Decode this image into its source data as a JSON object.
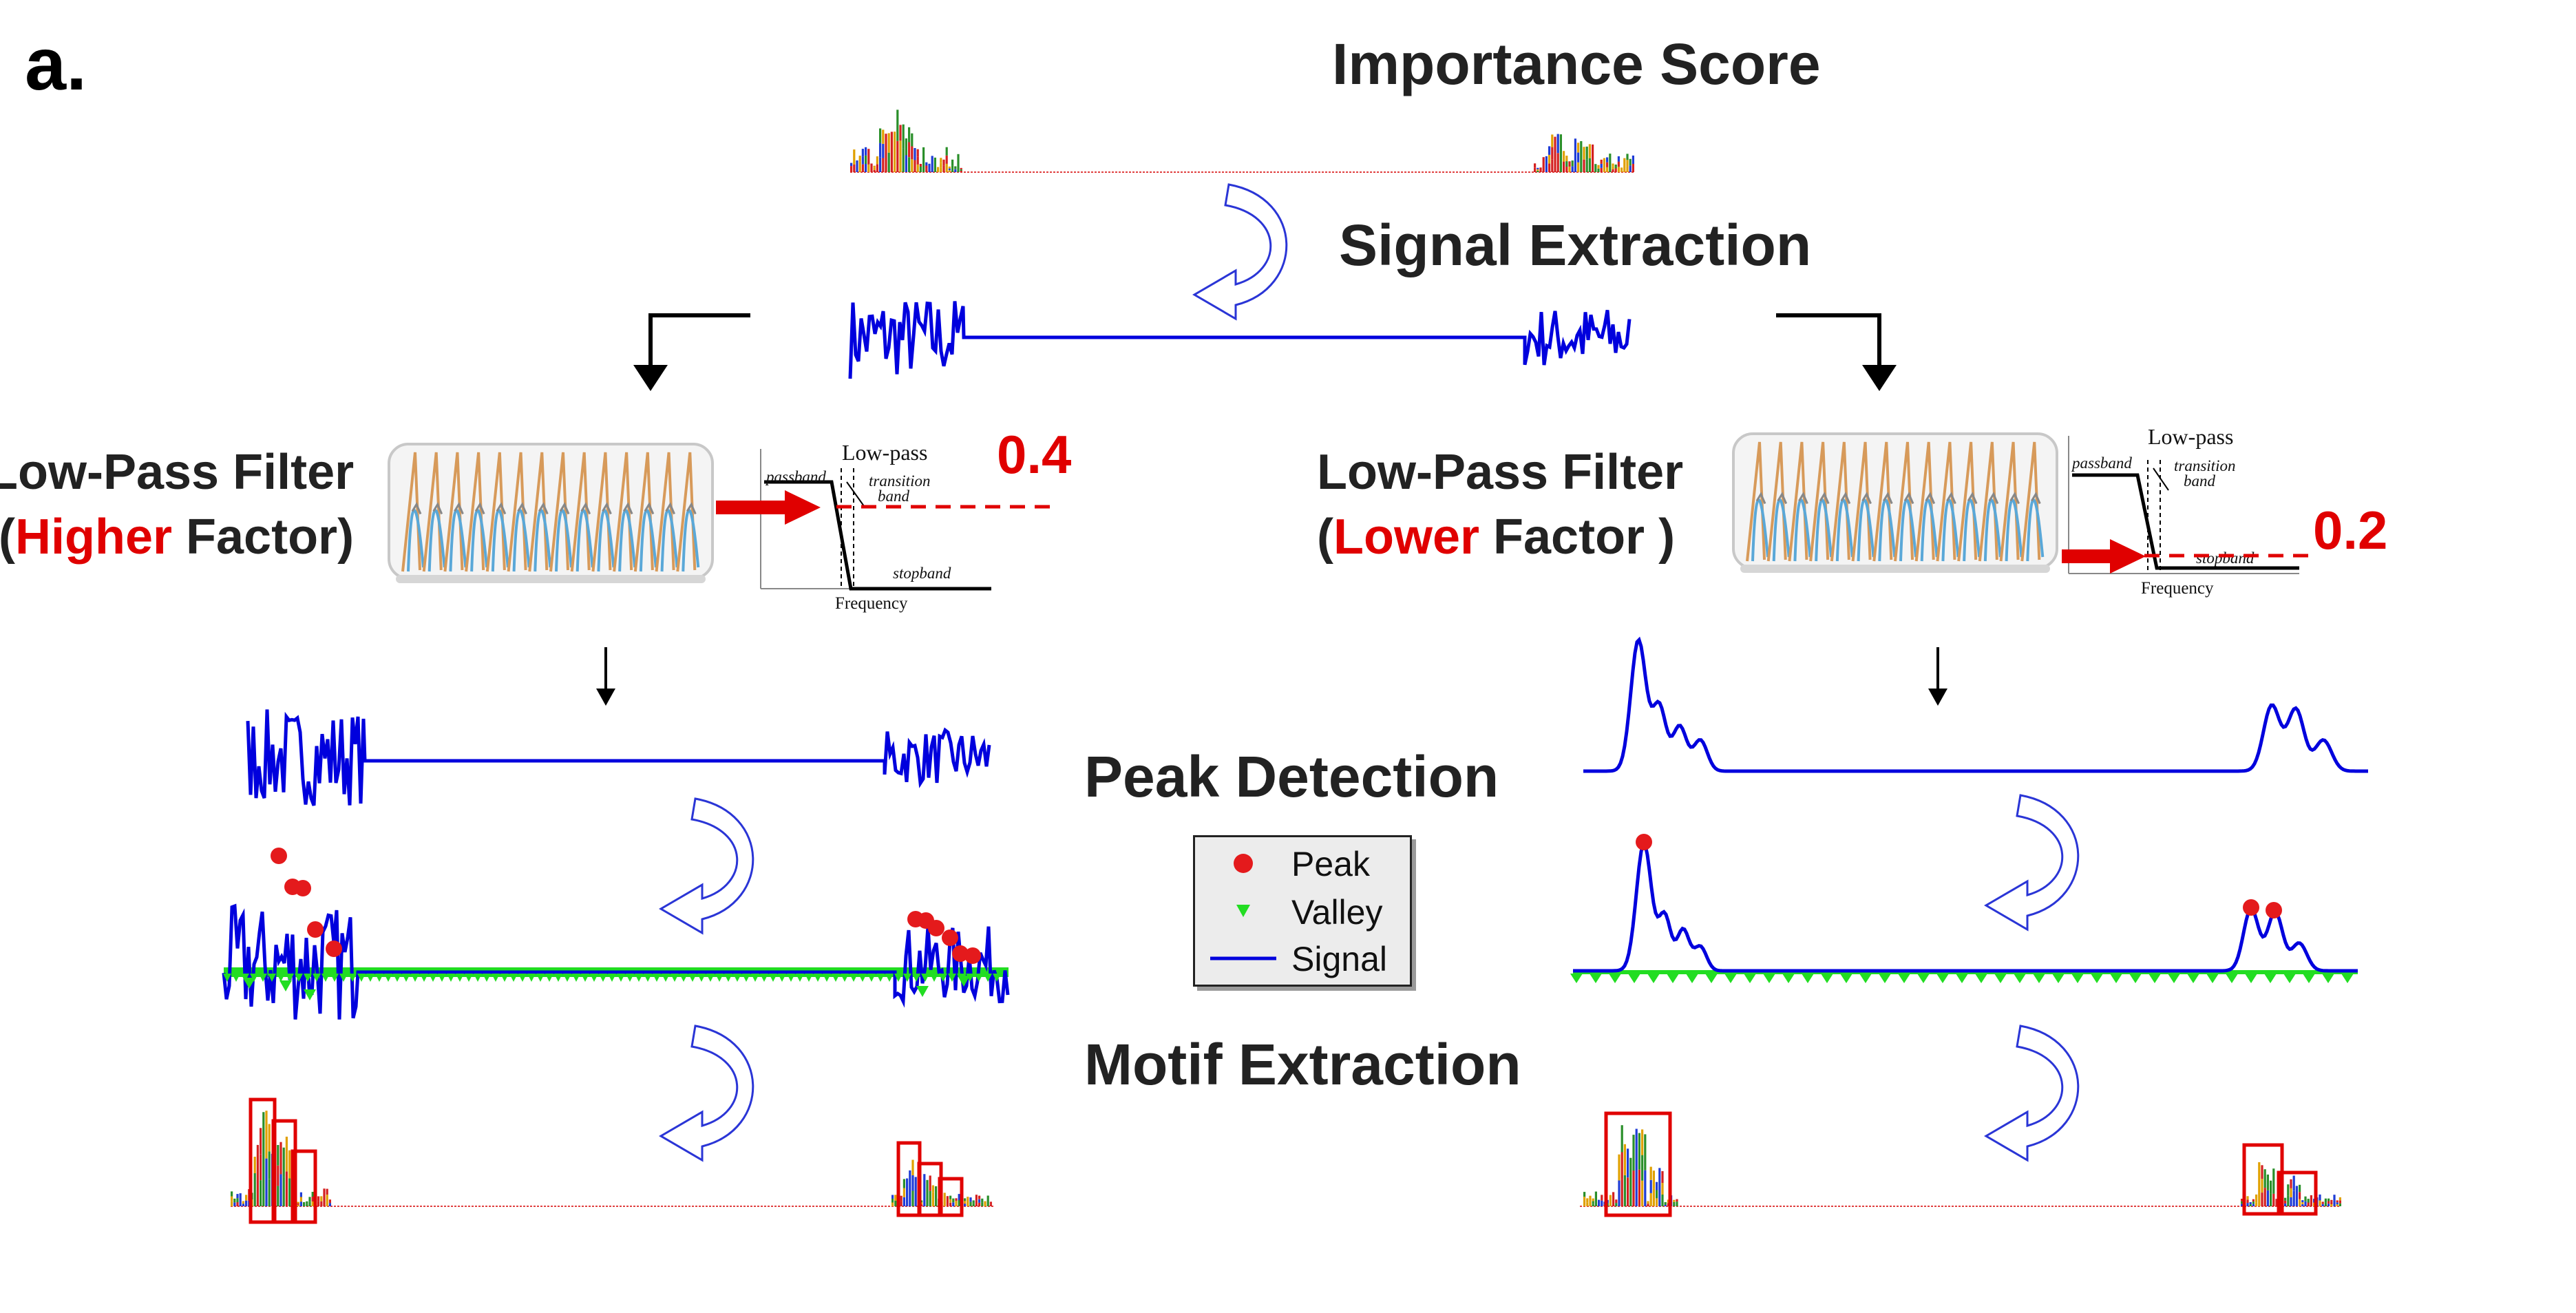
{
  "panel_letter": "a.",
  "titles": {
    "importance_score": "Importance Score",
    "signal_extraction": "Signal Extraction",
    "peak_detection": "Peak Detection",
    "motif_extraction": "Motif Extraction"
  },
  "left_branch": {
    "filter_line1": "Low-Pass Filter",
    "filter_open_paren": "(",
    "filter_highlight": "Higher",
    "filter_rest": " Factor)",
    "factor_value": "0.4"
  },
  "right_branch": {
    "filter_line1": "Low-Pass Filter",
    "filter_open_paren": "(",
    "filter_highlight": "Lower",
    "filter_rest": " Factor )",
    "factor_value": "0.2"
  },
  "filter_plot": {
    "title": "Low-pass",
    "passband": "passband",
    "transition": "transition",
    "band": "band",
    "stopband": "stopband",
    "xlabel": "Frequency"
  },
  "legend": {
    "peak": "Peak",
    "valley": "Valley",
    "signal": "Signal"
  },
  "colors": {
    "signal": "#0000dd",
    "peak": "#e41a1c",
    "valley": "#22dd22",
    "highlight": "#e00000",
    "arrow_outline": "#2a35d6"
  }
}
